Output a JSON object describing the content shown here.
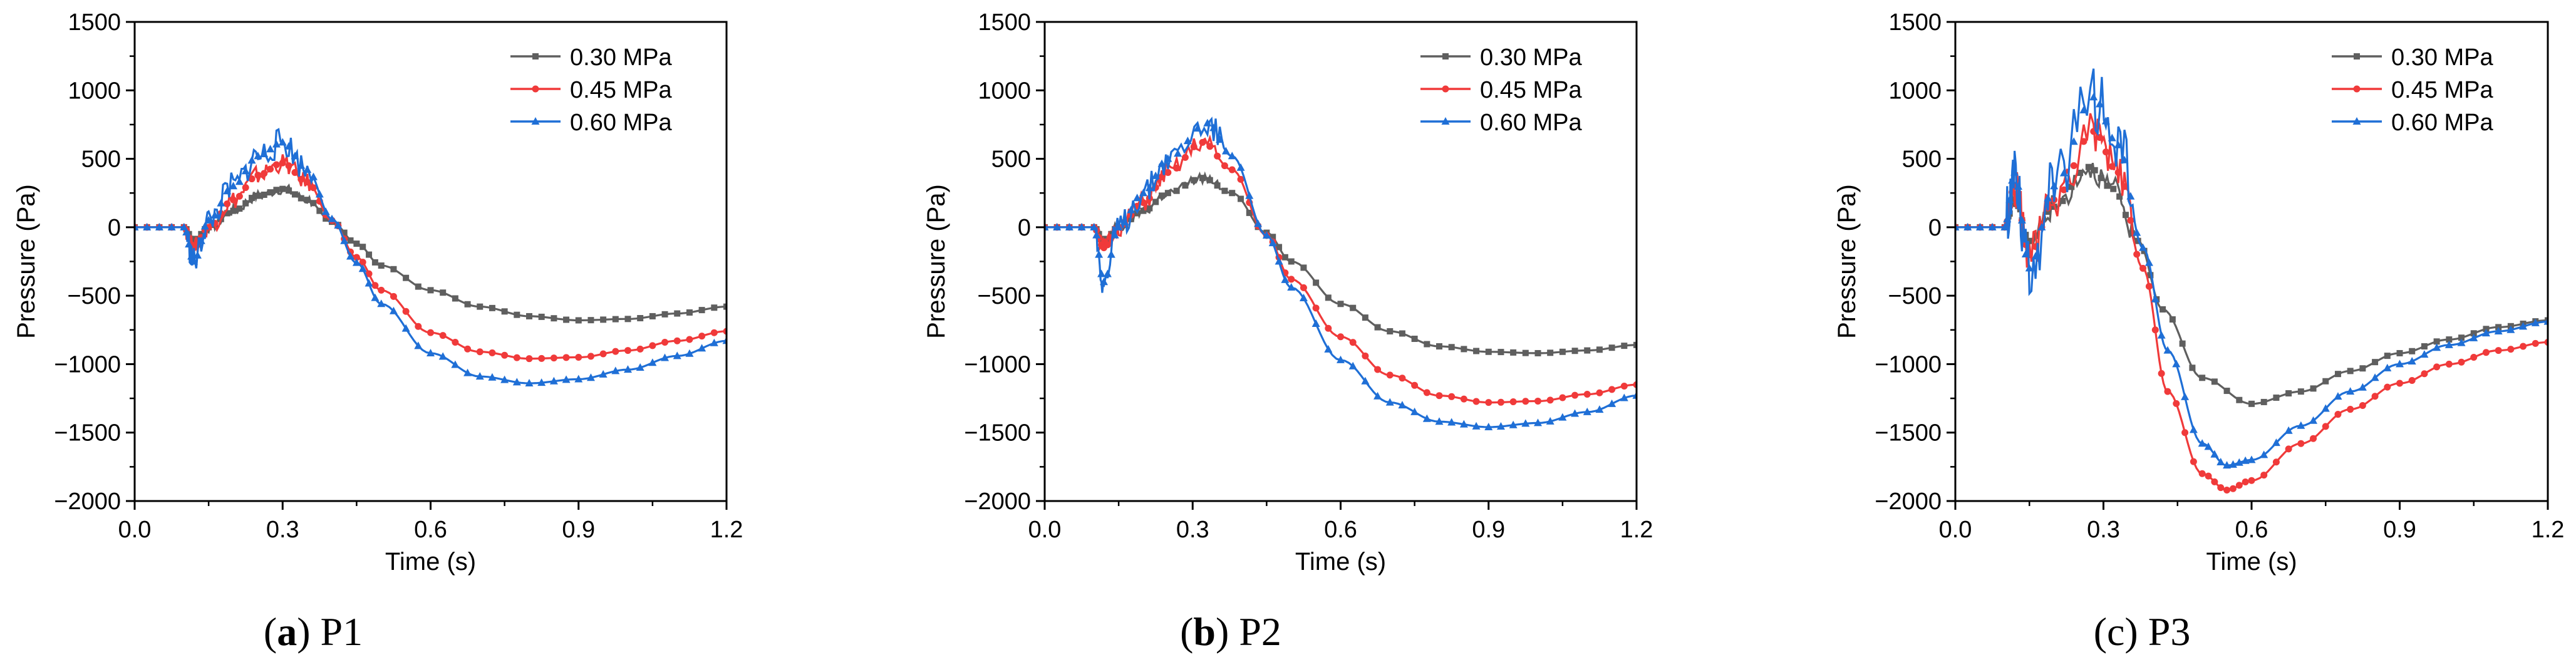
{
  "figure": {
    "series_colors": [
      "#5f5f5f",
      "#f03a3a",
      "#1f6fd6"
    ],
    "legend_labels": [
      "0.30 MPa",
      "0.45 MPa",
      "0.60 MPa"
    ]
  },
  "chart_data": [
    {
      "type": "line",
      "panel": "P1",
      "caption_label": "a",
      "caption_text": ") P1",
      "caption_prefix": "(",
      "xlabel": "Time (s)",
      "ylabel": "Pressure (Pa)",
      "xlim": [
        0,
        1.2
      ],
      "ylim": [
        -2000,
        1500
      ],
      "xticks": [
        0.0,
        0.3,
        0.6,
        0.9,
        1.2
      ],
      "xtick_labels": [
        "0.0",
        "0.3",
        "0.6",
        "0.9",
        "1.2"
      ],
      "yticks": [
        1500,
        1000,
        500,
        0,
        -500,
        -1000,
        -1500,
        -2000
      ],
      "ytick_labels": [
        "1500",
        "1000",
        "500",
        "0",
        "−500",
        "−1000",
        "−1500",
        "−2000"
      ],
      "legend_position": "top-right",
      "series": [
        {
          "name": "0.30 MPa",
          "marker": "square",
          "x": [
            0,
            0.1,
            0.12,
            0.15,
            0.2,
            0.25,
            0.3,
            0.35,
            0.4,
            0.45,
            0.5,
            0.6,
            0.7,
            0.8,
            0.9,
            1.0,
            1.1,
            1.2
          ],
          "y": [
            0,
            0,
            -100,
            0,
            120,
            230,
            280,
            200,
            40,
            -120,
            -280,
            -460,
            -580,
            -650,
            -680,
            -670,
            -630,
            -580
          ]
        },
        {
          "name": "0.45 MPa",
          "marker": "circle",
          "x": [
            0,
            0.1,
            0.12,
            0.15,
            0.2,
            0.25,
            0.3,
            0.35,
            0.4,
            0.45,
            0.5,
            0.6,
            0.7,
            0.8,
            0.9,
            1.0,
            1.1,
            1.2
          ],
          "y": [
            0,
            0,
            -150,
            0,
            200,
            380,
            470,
            330,
            50,
            -220,
            -460,
            -770,
            -910,
            -960,
            -950,
            -900,
            -830,
            -760
          ]
        },
        {
          "name": "0.60 MPa",
          "marker": "triangle",
          "x": [
            0,
            0.1,
            0.12,
            0.15,
            0.2,
            0.25,
            0.3,
            0.35,
            0.4,
            0.45,
            0.5,
            0.6,
            0.7,
            0.8,
            0.9,
            1.0,
            1.1,
            1.2
          ],
          "y": [
            0,
            0,
            -250,
            50,
            300,
            520,
            620,
            420,
            60,
            -260,
            -560,
            -920,
            -1090,
            -1140,
            -1110,
            -1040,
            -940,
            -830
          ]
        }
      ]
    },
    {
      "type": "line",
      "panel": "P2",
      "caption_label": "b",
      "caption_text": ") P2",
      "caption_prefix": "(",
      "xlabel": "Time (s)",
      "ylabel": "Pressure (Pa)",
      "xlim": [
        0,
        1.2
      ],
      "ylim": [
        -2000,
        1500
      ],
      "xticks": [
        0.0,
        0.3,
        0.6,
        0.9,
        1.2
      ],
      "xtick_labels": [
        "0.0",
        "0.3",
        "0.6",
        "0.9",
        "1.2"
      ],
      "yticks": [
        1500,
        1000,
        500,
        0,
        -500,
        -1000,
        -1500,
        -2000
      ],
      "ytick_labels": [
        "1500",
        "1000",
        "500",
        "0",
        "−500",
        "−1000",
        "−1500",
        "−2000"
      ],
      "legend_position": "top-right",
      "series": [
        {
          "name": "0.30 MPa",
          "marker": "square",
          "x": [
            0,
            0.1,
            0.12,
            0.15,
            0.2,
            0.25,
            0.32,
            0.38,
            0.45,
            0.5,
            0.6,
            0.7,
            0.8,
            0.9,
            1.0,
            1.1,
            1.2
          ],
          "y": [
            0,
            0,
            -100,
            0,
            120,
            250,
            360,
            250,
            -40,
            -250,
            -560,
            -760,
            -870,
            -910,
            -920,
            -900,
            -860
          ]
        },
        {
          "name": "0.45 MPa",
          "marker": "circle",
          "x": [
            0,
            0.1,
            0.12,
            0.15,
            0.2,
            0.25,
            0.32,
            0.38,
            0.45,
            0.5,
            0.6,
            0.7,
            0.8,
            0.9,
            1.0,
            1.1,
            1.2
          ],
          "y": [
            0,
            0,
            -150,
            0,
            180,
            400,
            620,
            420,
            -60,
            -380,
            -800,
            -1080,
            -1230,
            -1280,
            -1270,
            -1220,
            -1150
          ]
        },
        {
          "name": "0.60 MPa",
          "marker": "triangle",
          "x": [
            0,
            0.1,
            0.12,
            0.15,
            0.2,
            0.25,
            0.33,
            0.38,
            0.45,
            0.5,
            0.6,
            0.7,
            0.8,
            0.9,
            1.0,
            1.1,
            1.2
          ],
          "y": [
            0,
            0,
            -400,
            0,
            250,
            500,
            760,
            520,
            -60,
            -440,
            -970,
            -1280,
            -1420,
            -1460,
            -1430,
            -1350,
            -1230
          ]
        }
      ]
    },
    {
      "type": "line",
      "panel": "P3",
      "caption_label": "",
      "caption_text": "(c) P3",
      "caption_prefix": "",
      "xlabel": "Time (s)",
      "ylabel": "Pressure (Pa)",
      "xlim": [
        0,
        1.2
      ],
      "ylim": [
        -2000,
        1500
      ],
      "xticks": [
        0.0,
        0.3,
        0.6,
        0.9,
        1.2
      ],
      "xtick_labels": [
        "0.0",
        "0.3",
        "0.6",
        "0.9",
        "1.2"
      ],
      "yticks": [
        1500,
        1000,
        500,
        0,
        -500,
        -1000,
        -1500,
        -2000
      ],
      "ytick_labels": [
        "1500",
        "1000",
        "500",
        "0",
        "−500",
        "−1000",
        "−1500",
        "−2000"
      ],
      "legend_position": "top-right",
      "series": [
        {
          "name": "0.30 MPa",
          "marker": "square",
          "x": [
            0,
            0.1,
            0.12,
            0.15,
            0.2,
            0.27,
            0.32,
            0.37,
            0.42,
            0.5,
            0.6,
            0.7,
            0.8,
            0.9,
            1.0,
            1.1,
            1.2
          ],
          "y": [
            0,
            0,
            200,
            -100,
            150,
            440,
            280,
            -100,
            -600,
            -1100,
            -1290,
            -1200,
            -1050,
            -920,
            -820,
            -730,
            -680
          ]
        },
        {
          "name": "0.45 MPa",
          "marker": "circle",
          "x": [
            0,
            0.1,
            0.12,
            0.15,
            0.2,
            0.28,
            0.33,
            0.38,
            0.43,
            0.5,
            0.55,
            0.6,
            0.7,
            0.8,
            0.9,
            1.0,
            1.1,
            1.2
          ],
          "y": [
            0,
            0,
            300,
            -200,
            200,
            700,
            400,
            -300,
            -1200,
            -1800,
            -1920,
            -1850,
            -1580,
            -1330,
            -1140,
            -1000,
            -900,
            -840
          ]
        },
        {
          "name": "0.60 MPa",
          "marker": "triangle",
          "x": [
            0,
            0.1,
            0.12,
            0.15,
            0.2,
            0.28,
            0.33,
            0.38,
            0.43,
            0.5,
            0.55,
            0.6,
            0.7,
            0.8,
            0.9,
            1.0,
            1.1,
            1.2
          ],
          "y": [
            0,
            0,
            400,
            -300,
            300,
            950,
            600,
            -150,
            -900,
            -1580,
            -1740,
            -1700,
            -1450,
            -1200,
            -1000,
            -860,
            -760,
            -690
          ]
        }
      ]
    }
  ]
}
